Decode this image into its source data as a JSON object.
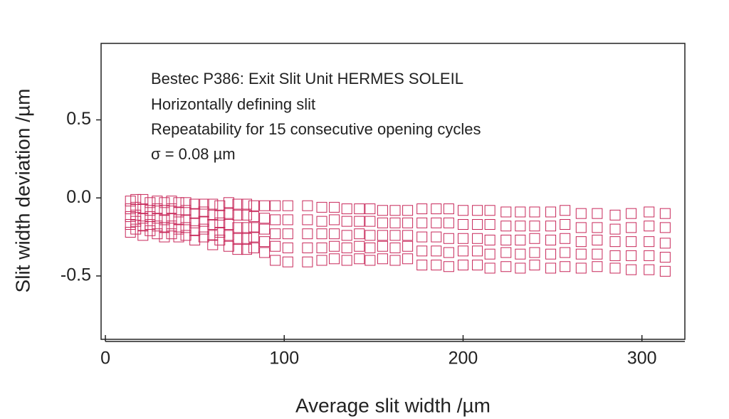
{
  "chart_data": {
    "type": "scatter",
    "annotations": [
      "Bestec P386: Exit Slit Unit HERMES SOLEIL",
      "Horizontally defining slit",
      "Repeatability for 15 consecutive opening cycles",
      "σ = 0.08 µm"
    ],
    "x_label": "Average slit width /µm",
    "y_label": "Slit width deviation /µm",
    "color": "#c8285a",
    "xlim": [
      -2.4,
      324
    ],
    "ylim": [
      -0.906,
      0.99
    ],
    "xticks": [
      0,
      100,
      200,
      300
    ],
    "yticks": [
      0.5,
      {
        "value": 0,
        "label": "0.0"
      },
      -0.5
    ],
    "x": [
      14,
      17,
      21,
      25,
      29,
      33,
      37,
      41,
      45,
      50,
      55,
      60,
      64,
      69,
      74,
      79,
      83,
      89,
      95,
      102,
      113,
      121,
      128,
      135,
      142,
      148,
      155,
      162,
      169,
      177,
      185,
      192,
      200,
      208,
      215,
      224,
      232,
      240,
      249,
      257,
      266,
      275,
      285,
      294,
      304,
      313
    ],
    "series": [
      {
        "values": [
          -0.02,
          -0.01,
          -0.01,
          -0.03,
          -0.02,
          -0.03,
          -0.02,
          -0.03,
          -0.03,
          -0.04,
          -0.04,
          -0.04,
          -0.05,
          -0.03,
          -0.04,
          -0.04,
          -0.05,
          -0.05,
          -0.05,
          -0.05,
          -0.05,
          -0.06,
          -0.06,
          -0.07,
          -0.07,
          -0.07,
          -0.08,
          -0.08,
          -0.08,
          -0.07,
          -0.07,
          -0.07,
          -0.08,
          -0.08,
          -0.08,
          -0.09,
          -0.09,
          -0.09,
          -0.09,
          -0.08,
          -0.1,
          -0.1,
          -0.11,
          -0.1,
          -0.09,
          -0.1
        ]
      },
      {
        "values": [
          -0.07,
          -0.06,
          -0.07,
          -0.08,
          -0.07,
          -0.08,
          -0.07,
          -0.09,
          -0.08,
          -0.1,
          -0.09,
          -0.11,
          -0.11,
          -0.1,
          -0.11,
          -0.11,
          -0.12,
          -0.13,
          -0.14,
          -0.14,
          -0.14,
          -0.15,
          -0.14,
          -0.15,
          -0.15,
          -0.15,
          -0.16,
          -0.16,
          -0.16,
          -0.16,
          -0.16,
          -0.16,
          -0.17,
          -0.17,
          -0.17,
          -0.18,
          -0.18,
          -0.18,
          -0.18,
          -0.17,
          -0.19,
          -0.19,
          -0.2,
          -0.19,
          -0.18,
          -0.19
        ]
      },
      {
        "values": [
          -0.12,
          -0.11,
          -0.13,
          -0.12,
          -0.13,
          -0.14,
          -0.13,
          -0.14,
          -0.14,
          -0.16,
          -0.15,
          -0.17,
          -0.16,
          -0.17,
          -0.19,
          -0.19,
          -0.19,
          -0.2,
          -0.23,
          -0.23,
          -0.23,
          -0.23,
          -0.23,
          -0.24,
          -0.23,
          -0.24,
          -0.24,
          -0.24,
          -0.24,
          -0.25,
          -0.25,
          -0.26,
          -0.26,
          -0.26,
          -0.27,
          -0.27,
          -0.27,
          -0.26,
          -0.27,
          -0.26,
          -0.28,
          -0.27,
          -0.28,
          -0.28,
          -0.28,
          -0.29
        ]
      },
      {
        "values": [
          -0.17,
          -0.15,
          -0.18,
          -0.17,
          -0.18,
          -0.19,
          -0.18,
          -0.2,
          -0.19,
          -0.21,
          -0.2,
          -0.24,
          -0.22,
          -0.24,
          -0.26,
          -0.26,
          -0.25,
          -0.28,
          -0.31,
          -0.32,
          -0.32,
          -0.32,
          -0.31,
          -0.32,
          -0.31,
          -0.32,
          -0.31,
          -0.32,
          -0.31,
          -0.34,
          -0.34,
          -0.35,
          -0.34,
          -0.34,
          -0.36,
          -0.35,
          -0.36,
          -0.35,
          -0.36,
          -0.35,
          -0.36,
          -0.36,
          -0.37,
          -0.37,
          -0.37,
          -0.38
        ]
      },
      {
        "values": [
          -0.22,
          -0.2,
          -0.24,
          -0.21,
          -0.23,
          -0.25,
          -0.23,
          -0.25,
          -0.24,
          -0.27,
          -0.25,
          -0.3,
          -0.27,
          -0.31,
          -0.33,
          -0.33,
          -0.32,
          -0.35,
          -0.4,
          -0.41,
          -0.41,
          -0.4,
          -0.39,
          -0.4,
          -0.39,
          -0.4,
          -0.39,
          -0.4,
          -0.39,
          -0.43,
          -0.43,
          -0.44,
          -0.43,
          -0.43,
          -0.45,
          -0.44,
          -0.45,
          -0.43,
          -0.45,
          -0.44,
          -0.45,
          -0.44,
          -0.45,
          -0.46,
          -0.46,
          -0.47
        ]
      }
    ]
  }
}
